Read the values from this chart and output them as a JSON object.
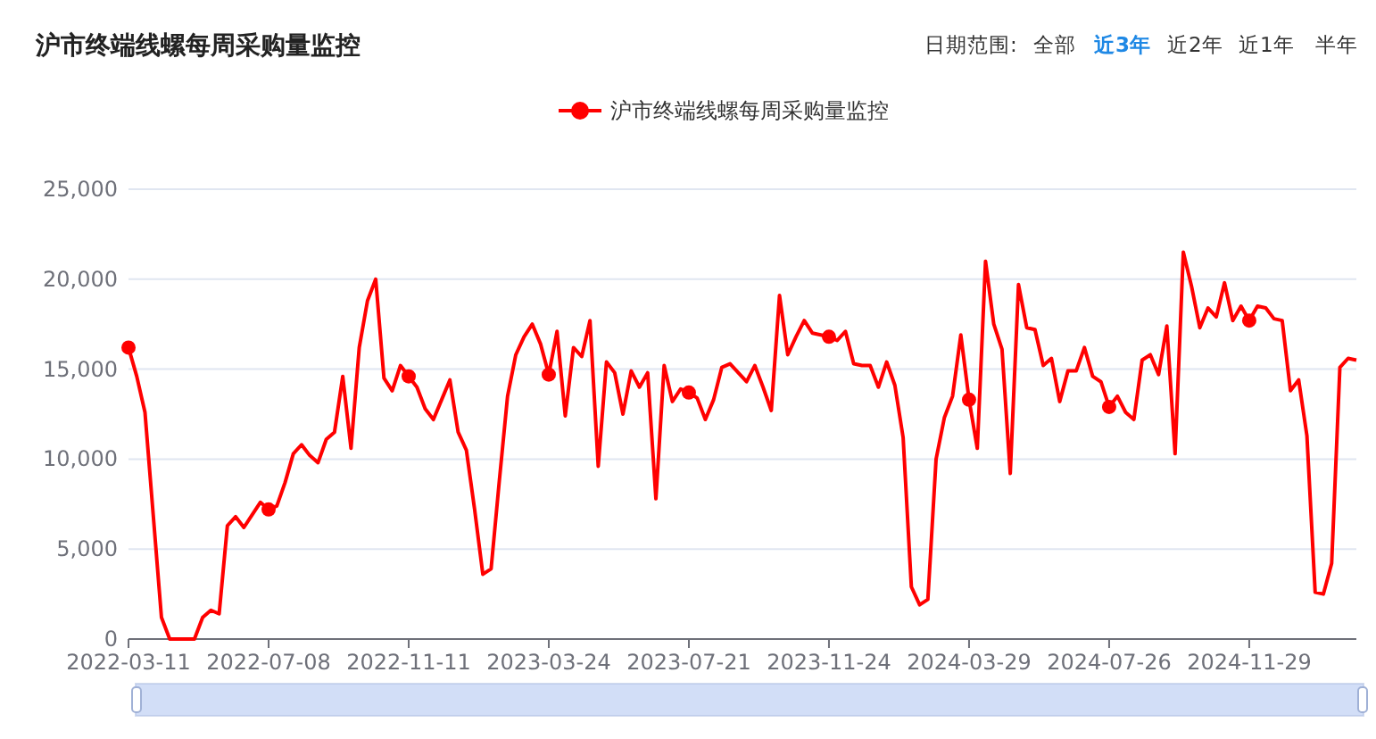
{
  "chart_data": {
    "type": "line",
    "title": "沪市终端线螺每周采购量监控",
    "annotations": [
      "日期范围:",
      "全部",
      "近3年",
      "近2年",
      "近1年",
      "半年"
    ],
    "categories": [
      "2022-03-11",
      null,
      null,
      null,
      null,
      null,
      null,
      null,
      null,
      null,
      null,
      null,
      null,
      null,
      null,
      null,
      null,
      "2022-07-08",
      null,
      null,
      null,
      null,
      null,
      null,
      null,
      null,
      null,
      null,
      null,
      null,
      null,
      null,
      null,
      null,
      "2022-11-11",
      null,
      null,
      null,
      null,
      null,
      null,
      null,
      null,
      null,
      null,
      null,
      null,
      null,
      null,
      null,
      null,
      "2023-03-24",
      null,
      null,
      null,
      null,
      null,
      null,
      null,
      null,
      null,
      null,
      null,
      null,
      null,
      null,
      null,
      null,
      "2023-07-21",
      null,
      null,
      null,
      null,
      null,
      null,
      null,
      null,
      null,
      null,
      null,
      null,
      null,
      null,
      null,
      null,
      "2023-11-24",
      null,
      null,
      null,
      null,
      null,
      null,
      null,
      null,
      null,
      null,
      null,
      null,
      null,
      null,
      null,
      null,
      "2024-03-29",
      null,
      null,
      null,
      null,
      null,
      null,
      null,
      null,
      null,
      null,
      null,
      null,
      null,
      null,
      null,
      null,
      "2024-07-26",
      null,
      null,
      null,
      null,
      null,
      null,
      null,
      null,
      null,
      null,
      null,
      null,
      null,
      null,
      null,
      null,
      "2024-11-29",
      null,
      null,
      null,
      null,
      null,
      null,
      null,
      null,
      null,
      null,
      null,
      null,
      null
    ],
    "series": [
      {
        "name": "沪市终端线螺每周采购量监控",
        "color": "#ff0000",
        "values": [
          16200,
          14600,
          12600,
          6900,
          1200,
          0,
          0,
          0,
          0,
          1200,
          1600,
          1400,
          6300,
          6800,
          6200,
          6900,
          7600,
          7200,
          7400,
          8700,
          10300,
          10800,
          10200,
          9800,
          11100,
          11500,
          14600,
          10600,
          16200,
          18800,
          20000,
          14500,
          13800,
          15200,
          14600,
          14000,
          12800,
          12200,
          13300,
          14400,
          11500,
          10500,
          7200,
          3600,
          3900,
          8800,
          13500,
          15800,
          16800,
          17500,
          16400,
          14700,
          17100,
          12400,
          16200,
          15700,
          17700,
          9600,
          15400,
          14800,
          12500,
          14900,
          14000,
          14800,
          7800,
          15200,
          13200,
          13900,
          13700,
          13400,
          12200,
          13300,
          15100,
          15300,
          14800,
          14300,
          15200,
          14000,
          12700,
          19100,
          15800,
          16800,
          17700,
          17000,
          16900,
          16800,
          16600,
          17100,
          15300,
          15200,
          15200,
          14000,
          15400,
          14100,
          11200,
          2900,
          1900,
          2200,
          10000,
          12300,
          13500,
          16900,
          13300,
          10600,
          21000,
          17500,
          16100,
          9200,
          19700,
          17300,
          17200,
          15200,
          15600,
          13200,
          14900,
          14900,
          16200,
          14600,
          14300,
          12900,
          13500,
          12600,
          12200,
          15500,
          15800,
          14700,
          17400,
          10300,
          21500,
          19600,
          17300,
          18400,
          17900,
          19800,
          17700,
          18500,
          17700,
          18500,
          18400,
          17800,
          17700,
          13800,
          14400,
          11300,
          2600,
          2500,
          4200,
          15100,
          15600,
          15500
        ]
      }
    ],
    "ylim": [
      0,
      25000
    ],
    "yticks": [
      0,
      {
        "value": 5000,
        "label": "5,000"
      },
      {
        "value": 10000,
        "label": "10,000"
      },
      {
        "value": 15000,
        "label": "15,000"
      },
      {
        "value": 20000,
        "label": "20,000"
      },
      {
        "value": 25000,
        "label": "25,000"
      }
    ],
    "grid": "y",
    "legend": "top",
    "line_style": "solid"
  }
}
